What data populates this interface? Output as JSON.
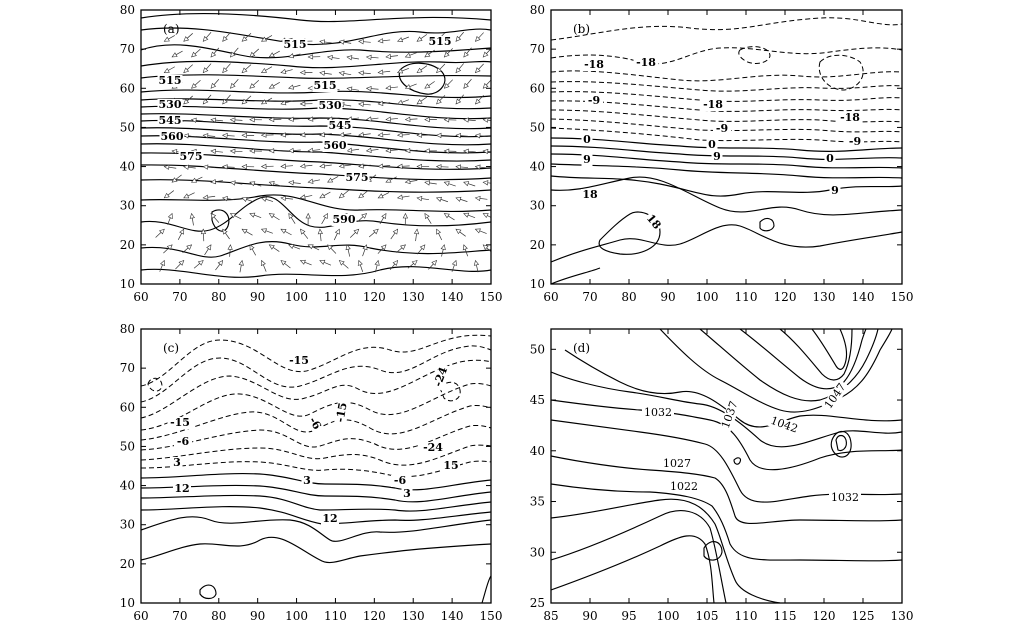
{
  "chart_data": [
    {
      "type": "contour",
      "panel": "(a)",
      "xlim": [
        60,
        150
      ],
      "ylim": [
        10,
        80
      ],
      "xticks": [
        60,
        70,
        80,
        90,
        100,
        110,
        120,
        130,
        140,
        150
      ],
      "yticks": [
        10,
        20,
        30,
        40,
        50,
        60,
        70,
        80
      ],
      "contour_labels": [
        "515",
        "515",
        "515",
        "515",
        "530",
        "530",
        "545",
        "545",
        "560",
        "560",
        "575",
        "575",
        "590"
      ],
      "vectors": true
    },
    {
      "type": "contour",
      "panel": "(b)",
      "xlim": [
        60,
        150
      ],
      "ylim": [
        10,
        80
      ],
      "xticks": [
        60,
        70,
        80,
        90,
        100,
        110,
        120,
        130,
        140,
        150
      ],
      "yticks": [
        10,
        20,
        30,
        40,
        50,
        60,
        70,
        80
      ],
      "contour_labels": [
        "-18",
        "-18",
        "-18",
        "-18",
        "-9",
        "-9",
        "-9",
        "0",
        "0",
        "0",
        "9",
        "9",
        "9",
        "18",
        "18"
      ]
    },
    {
      "type": "contour",
      "panel": "(c)",
      "xlim": [
        60,
        150
      ],
      "ylim": [
        10,
        80
      ],
      "xticks": [
        60,
        70,
        80,
        90,
        100,
        110,
        120,
        130,
        140,
        150
      ],
      "yticks": [
        10,
        20,
        30,
        40,
        50,
        60,
        70,
        80
      ],
      "contour_labels": [
        "-15",
        "-15",
        "-15",
        "-24",
        "-24",
        "-6",
        "-6",
        "-6",
        "3",
        "3",
        "3",
        "12",
        "12",
        "15"
      ]
    },
    {
      "type": "contour",
      "panel": "(d)",
      "xlim": [
        85,
        130
      ],
      "ylim": [
        25,
        52
      ],
      "xticks": [
        85,
        90,
        95,
        100,
        105,
        110,
        115,
        120,
        125,
        130
      ],
      "yticks": [
        25,
        30,
        35,
        40,
        45,
        50
      ],
      "contour_labels": [
        "1032",
        "1037",
        "1042",
        "1047",
        "1027",
        "1022",
        "1032"
      ]
    }
  ]
}
